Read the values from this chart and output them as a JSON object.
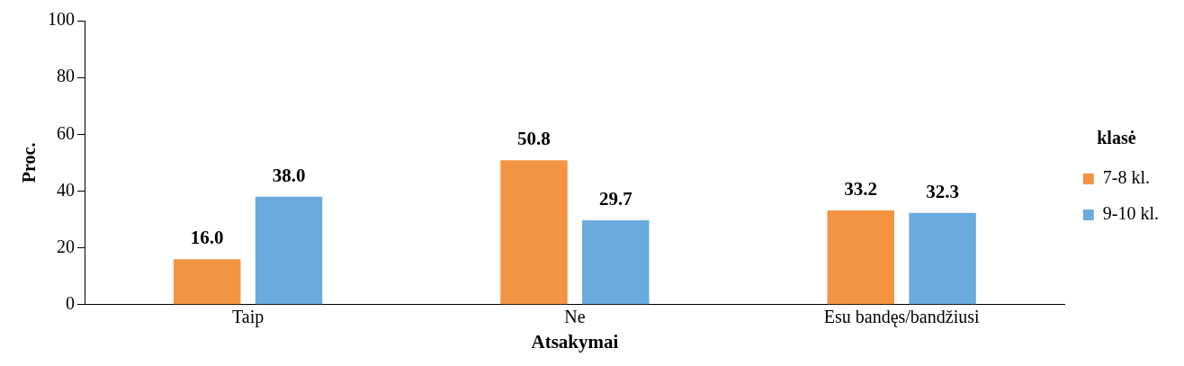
{
  "chart_data": {
    "type": "bar",
    "xlabel": "Atsakymai",
    "ylabel": "Proc.",
    "legend_title": "klasė",
    "categories": [
      "Taip",
      "Ne",
      "Esu bandęs/bandžiusi"
    ],
    "series": [
      {
        "name": "7-8 kl.",
        "color": "#f39443",
        "values": [
          16.0,
          50.8,
          33.2
        ],
        "value_labels": [
          "16.0",
          "50.8",
          "33.2"
        ]
      },
      {
        "name": "9-10 kl.",
        "color": "#6aaadc",
        "values": [
          38.0,
          29.7,
          32.3
        ],
        "value_labels": [
          "38.0",
          "29.7",
          "32.3"
        ]
      }
    ],
    "ylim": [
      0,
      100
    ],
    "yticks": [
      0,
      20,
      40,
      60,
      80,
      100
    ],
    "grid": false,
    "legend": "right"
  }
}
